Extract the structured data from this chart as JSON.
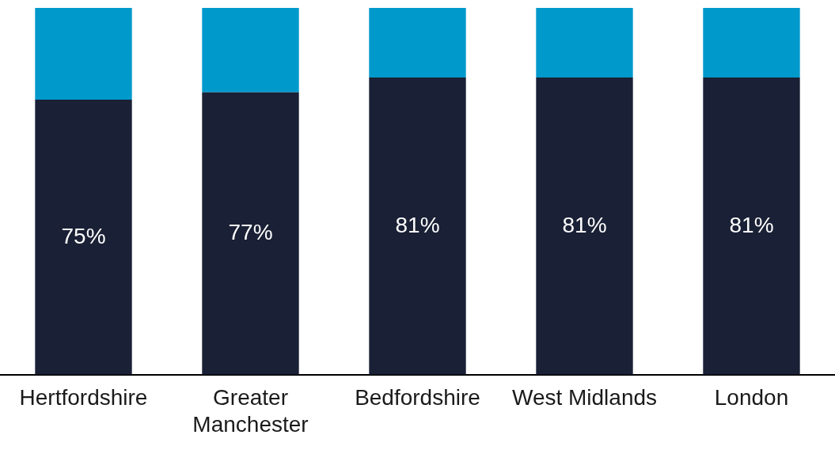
{
  "chart_data": {
    "type": "bar",
    "stacked": true,
    "categories": [
      "Hertfordshire",
      "Greater Manchester",
      "Bedfordshire",
      "West Midlands",
      "London"
    ],
    "series": [
      {
        "color": "#1a2035",
        "values": [
          75,
          77,
          81,
          81,
          81
        ],
        "value_labels": [
          "75%",
          "77%",
          "81%",
          "81%",
          "81%"
        ]
      },
      {
        "color": "#0099cc",
        "values": [
          25,
          23,
          19,
          19,
          19
        ]
      }
    ],
    "ylim": [
      0,
      100
    ],
    "tick_labels": "x",
    "grid": false,
    "legend": false
  }
}
